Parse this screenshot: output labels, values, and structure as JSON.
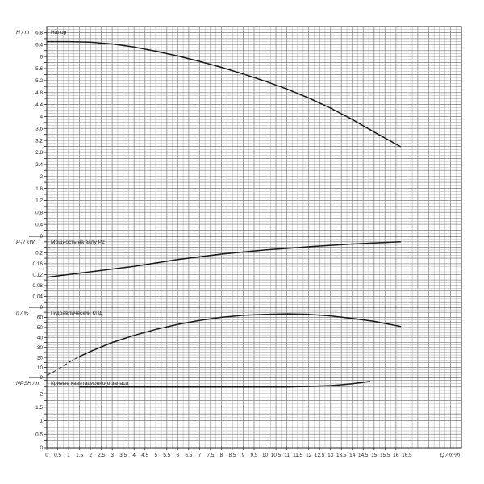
{
  "chart_data": [
    {
      "type": "line",
      "title": "Напор",
      "ylabel": "H / m",
      "xlim": [
        0,
        19
      ],
      "ylim": [
        0,
        7
      ],
      "y_ticks": [
        0,
        0.2,
        0.4,
        0.6,
        0.8,
        1,
        1.2,
        1.4,
        1.6,
        1.8,
        2,
        2.2,
        2.4,
        2.6,
        2.8,
        3,
        3.2,
        3.4,
        3.6,
        3.8,
        4,
        4.2,
        4.4,
        4.6,
        4.8,
        5,
        5.2,
        5.4,
        5.6,
        5.8,
        6,
        6.2,
        6.4,
        6.6,
        6.8
      ],
      "y_tick_labels": [
        "0",
        "0.4",
        "0.8",
        "1.2",
        "1.6",
        "2",
        "2.4",
        "2.8",
        "3.2",
        "3.6",
        "4",
        "4.4",
        "4.8",
        "5.2",
        "5.6",
        "6",
        "6.4",
        "6.8"
      ],
      "grid": true,
      "series": [
        {
          "x": [
            0,
            1,
            2,
            3,
            4,
            5,
            6,
            7,
            8,
            9,
            10,
            11,
            12,
            13,
            14,
            15,
            16.2
          ],
          "y": [
            6.5,
            6.5,
            6.48,
            6.42,
            6.32,
            6.18,
            6.02,
            5.84,
            5.64,
            5.42,
            5.18,
            4.92,
            4.62,
            4.28,
            3.9,
            3.48,
            3.0
          ]
        }
      ]
    },
    {
      "type": "line",
      "title": "Мощность на валу P2",
      "ylabel": "P₂ / kW",
      "xlim": [
        0,
        19
      ],
      "ylim": [
        0,
        0.26
      ],
      "y_ticks": [
        0,
        0.02,
        0.04,
        0.06,
        0.08,
        0.1,
        0.12,
        0.14,
        0.16,
        0.18,
        0.2,
        0.22,
        0.24
      ],
      "y_tick_labels": [
        "0",
        "0.04",
        "0.08",
        "0.12",
        "0.16",
        "0.2"
      ],
      "grid": true,
      "series": [
        {
          "x": [
            0,
            2,
            4,
            6,
            8,
            10,
            12,
            14,
            16.2
          ],
          "y": [
            0.11,
            0.13,
            0.15,
            0.175,
            0.195,
            0.21,
            0.222,
            0.232,
            0.24
          ]
        }
      ]
    },
    {
      "type": "line",
      "title": "Гидравлический КПД",
      "ylabel": "η / %",
      "xlim": [
        0,
        19
      ],
      "ylim": [
        0,
        70
      ],
      "y_ticks": [
        0,
        5,
        10,
        15,
        20,
        25,
        30,
        35,
        40,
        45,
        50,
        55,
        60,
        65
      ],
      "y_tick_labels": [
        "0",
        "10",
        "20",
        "30",
        "40",
        "50",
        "60"
      ],
      "grid": true,
      "series": [
        {
          "x": [
            0,
            0.5,
            1,
            1.5
          ],
          "y": [
            2,
            8,
            15,
            21
          ],
          "dashed": true
        },
        {
          "x": [
            1.5,
            2,
            3,
            4,
            5,
            6,
            7,
            8,
            9,
            10,
            11,
            12,
            13,
            14,
            15,
            16.2
          ],
          "y": [
            21,
            26,
            35,
            42,
            48,
            53,
            57,
            60,
            62,
            63,
            63.5,
            63,
            61.5,
            59,
            56,
            51
          ]
        }
      ]
    },
    {
      "type": "line",
      "title": "Кривые кавитационного запаса",
      "ylabel": "NPSH / m",
      "xlim": [
        0,
        19
      ],
      "ylim": [
        0,
        2.6
      ],
      "y_ticks": [
        0,
        0.25,
        0.5,
        0.75,
        1,
        1.25,
        1.5,
        1.75,
        2,
        2.25,
        2.5
      ],
      "y_tick_labels": [
        "0",
        "0.5",
        "1",
        "1.5",
        "2"
      ],
      "x_tick_labels": [
        "0",
        "0.5",
        "1",
        "1.5",
        "2",
        "2.5",
        "3",
        "3.5",
        "4",
        "4.5",
        "5",
        "5.5",
        "6",
        "6.5",
        "7",
        "7.5",
        "8",
        "8.5",
        "9",
        "9.5",
        "10",
        "10.5",
        "11",
        "11.5",
        "12",
        "12.5",
        "13",
        "13.5",
        "14",
        "14.5",
        "15",
        "15.5",
        "16",
        "16.5"
      ],
      "xlabel": "Q / m³/h",
      "grid": true,
      "series": [
        {
          "x": [
            1.5,
            3,
            5,
            7,
            9,
            11,
            12,
            13,
            13.5,
            14,
            14.5,
            14.8
          ],
          "y": [
            2.25,
            2.25,
            2.25,
            2.25,
            2.25,
            2.25,
            2.27,
            2.3,
            2.33,
            2.37,
            2.42,
            2.45
          ]
        }
      ]
    }
  ]
}
